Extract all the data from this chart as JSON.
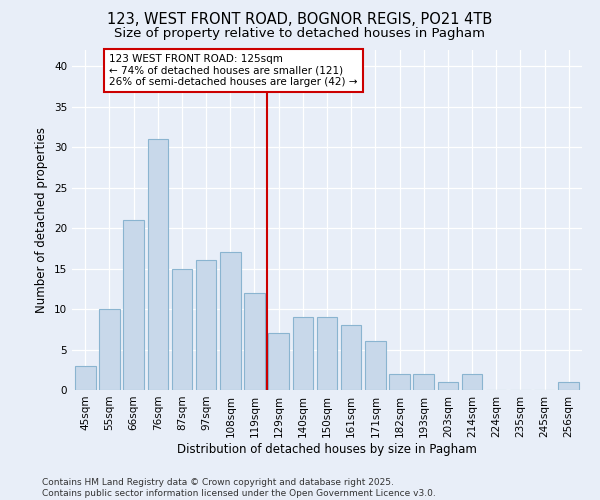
{
  "title_line1": "123, WEST FRONT ROAD, BOGNOR REGIS, PO21 4TB",
  "title_line2": "Size of property relative to detached houses in Pagham",
  "xlabel": "Distribution of detached houses by size in Pagham",
  "ylabel": "Number of detached properties",
  "categories": [
    "45sqm",
    "55sqm",
    "66sqm",
    "76sqm",
    "87sqm",
    "97sqm",
    "108sqm",
    "119sqm",
    "129sqm",
    "140sqm",
    "150sqm",
    "161sqm",
    "171sqm",
    "182sqm",
    "193sqm",
    "203sqm",
    "214sqm",
    "224sqm",
    "235sqm",
    "245sqm",
    "256sqm"
  ],
  "values": [
    3,
    10,
    21,
    31,
    15,
    16,
    17,
    12,
    7,
    9,
    9,
    8,
    6,
    2,
    2,
    1,
    2,
    0,
    0,
    0,
    1
  ],
  "bar_color": "#c8d8ea",
  "bar_edgecolor": "#8ab4d0",
  "vline_color": "#cc0000",
  "annotation_text": "123 WEST FRONT ROAD: 125sqm\n← 74% of detached houses are smaller (121)\n26% of semi-detached houses are larger (42) →",
  "annotation_box_color": "#ffffff",
  "annotation_box_edgecolor": "#cc0000",
  "ylim": [
    0,
    42
  ],
  "yticks": [
    0,
    5,
    10,
    15,
    20,
    25,
    30,
    35,
    40
  ],
  "bg_color": "#e8eef8",
  "plot_bg_color": "#e8eef8",
  "footer_line1": "Contains HM Land Registry data © Crown copyright and database right 2025.",
  "footer_line2": "Contains public sector information licensed under the Open Government Licence v3.0.",
  "title_fontsize": 10.5,
  "subtitle_fontsize": 9.5,
  "axis_label_fontsize": 8.5,
  "tick_fontsize": 7.5,
  "annotation_fontsize": 7.5,
  "footer_fontsize": 6.5
}
